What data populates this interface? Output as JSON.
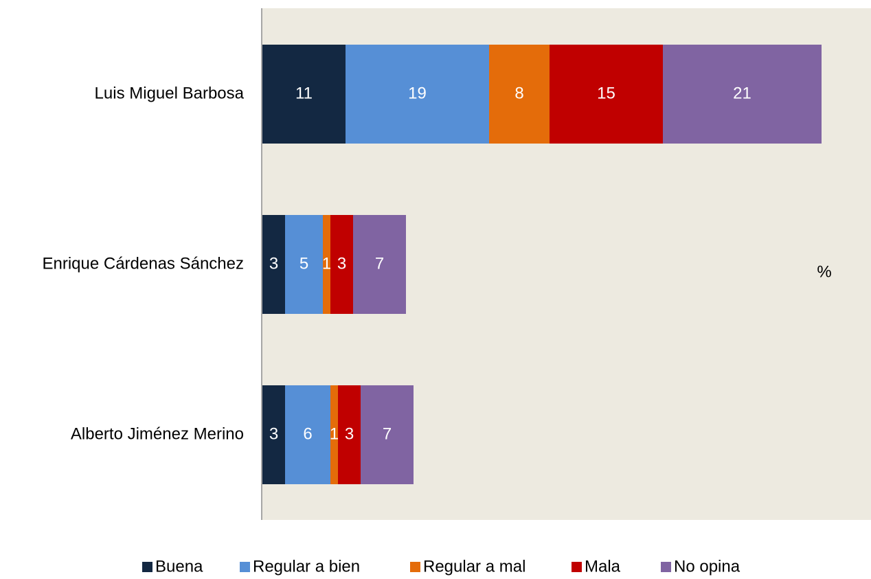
{
  "chart_data": {
    "type": "stacked-barh",
    "categories": [
      "Luis Miguel Barbosa",
      "Enrique Cárdenas Sánchez",
      "Alberto Jiménez Merino"
    ],
    "series": [
      {
        "name": "Buena",
        "color": "#132842",
        "values": [
          11,
          3,
          3
        ]
      },
      {
        "name": "Regular a bien",
        "color": "#568fd6",
        "values": [
          19,
          5,
          6
        ]
      },
      {
        "name": "Regular a mal",
        "color": "#e46c0a",
        "values": [
          8,
          1,
          1
        ]
      },
      {
        "name": "Mala",
        "color": "#c00000",
        "values": [
          15,
          3,
          3
        ]
      },
      {
        "name": "No opina",
        "color": "#8064a2",
        "values": [
          21,
          7,
          7
        ]
      }
    ],
    "annotation": "%",
    "legend": "bottom"
  }
}
